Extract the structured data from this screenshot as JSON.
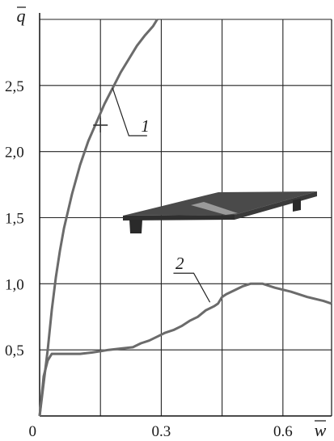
{
  "chart_data": {
    "type": "line",
    "xlabel": "w",
    "ylabel": "q",
    "xlim": [
      0,
      0.72
    ],
    "ylim": [
      0,
      3.0
    ],
    "grid": true,
    "x_ticks": [
      {
        "value": 0,
        "label": "0"
      },
      {
        "value": 0.3,
        "label": "0.3"
      },
      {
        "value": 0.6,
        "label": "0.6"
      }
    ],
    "y_ticks": [
      {
        "value": 0.5,
        "label": "0,5"
      },
      {
        "value": 1.0,
        "label": "1,0"
      },
      {
        "value": 1.5,
        "label": "1,5"
      },
      {
        "value": 2.0,
        "label": "2,0"
      },
      {
        "value": 2.5,
        "label": "2,5"
      }
    ],
    "series": [
      {
        "name": "1",
        "color": "#6b6b6b",
        "x": [
          0,
          0.01,
          0.02,
          0.03,
          0.04,
          0.05,
          0.06,
          0.08,
          0.1,
          0.12,
          0.14,
          0.16,
          0.18,
          0.2,
          0.22,
          0.24,
          0.26,
          0.28,
          0.29
        ],
        "y": [
          0,
          0.25,
          0.5,
          0.8,
          1.05,
          1.25,
          1.42,
          1.68,
          1.9,
          2.08,
          2.22,
          2.36,
          2.48,
          2.6,
          2.7,
          2.8,
          2.88,
          2.95,
          3.0
        ]
      },
      {
        "name": "2",
        "color": "#6b6b6b",
        "x": [
          0,
          0.01,
          0.02,
          0.03,
          0.05,
          0.07,
          0.1,
          0.13,
          0.17,
          0.2,
          0.23,
          0.25,
          0.27,
          0.29,
          0.31,
          0.33,
          0.35,
          0.37,
          0.39,
          0.41,
          0.43,
          0.44,
          0.45,
          0.46,
          0.48,
          0.5,
          0.52,
          0.55,
          0.58,
          0.62,
          0.66,
          0.7,
          0.72
        ],
        "y": [
          0,
          0.3,
          0.42,
          0.47,
          0.47,
          0.47,
          0.47,
          0.48,
          0.5,
          0.51,
          0.52,
          0.55,
          0.57,
          0.6,
          0.63,
          0.65,
          0.68,
          0.72,
          0.75,
          0.8,
          0.83,
          0.85,
          0.9,
          0.92,
          0.95,
          0.98,
          1.0,
          1.0,
          0.97,
          0.94,
          0.9,
          0.87,
          0.85
        ]
      }
    ],
    "annotations": [
      {
        "text": "1",
        "series": "1",
        "at_x": 0.15,
        "at_y": 2.2,
        "marker": "cross"
      },
      {
        "text": "2",
        "series": "2",
        "at_x": 0.44,
        "at_y": 0.85
      }
    ]
  }
}
